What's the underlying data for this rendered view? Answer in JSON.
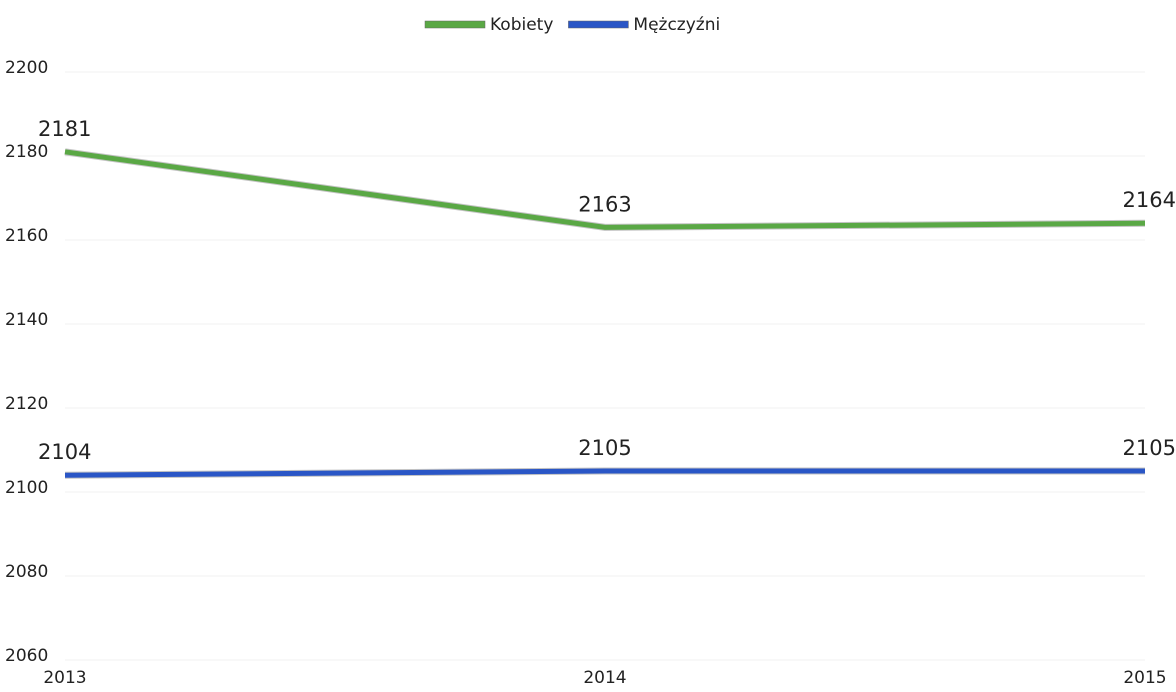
{
  "chart_data": {
    "type": "line",
    "categories": [
      "2013",
      "2014",
      "2015"
    ],
    "series": [
      {
        "name": "Kobiety",
        "color": "#5aa845",
        "values": [
          2181,
          2163,
          2164
        ]
      },
      {
        "name": "Mężczyźni",
        "color": "#2a56c6",
        "values": [
          2104,
          2105,
          2105
        ]
      }
    ],
    "ylim": [
      2060,
      2200
    ],
    "yticks": [
      2060,
      2080,
      2100,
      2120,
      2140,
      2160,
      2180,
      2200
    ],
    "grid": true,
    "legend": "top"
  }
}
